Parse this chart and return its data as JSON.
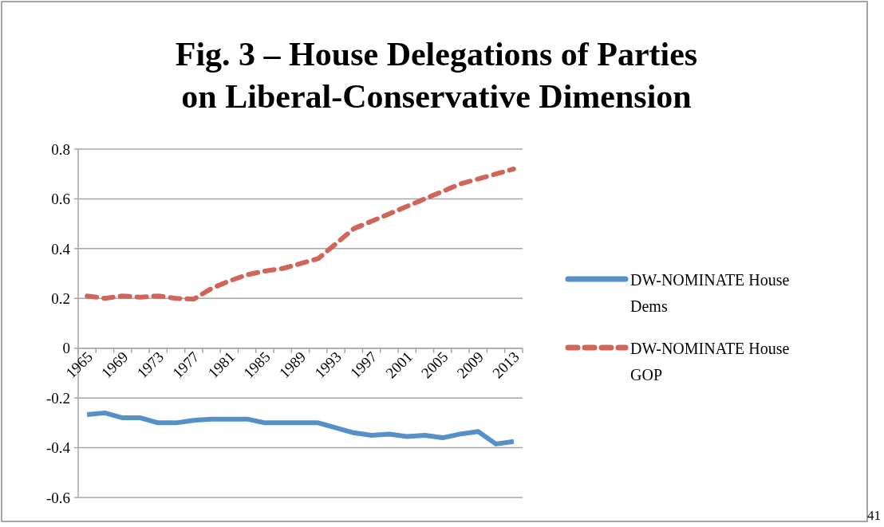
{
  "chart_data": {
    "type": "line",
    "title": "Fig. 3 – House Delegations of Parties on Liberal-Conservative Dimension",
    "categories": [
      "1965",
      null,
      "1969",
      null,
      "1973",
      null,
      "1977",
      null,
      "1981",
      null,
      "1985",
      null,
      "1989",
      null,
      "1993",
      null,
      "1997",
      null,
      "2001",
      null,
      "2005",
      null,
      "2009",
      null,
      "2013"
    ],
    "series": [
      {
        "name": "DW-NOMINATE House Dems",
        "color": "#5590c8",
        "line_style": "solid",
        "values": [
          -0.267,
          -0.26,
          -0.28,
          -0.28,
          -0.3,
          -0.3,
          -0.29,
          -0.285,
          -0.285,
          -0.285,
          -0.3,
          -0.3,
          -0.3,
          -0.3,
          -0.32,
          -0.34,
          -0.35,
          -0.345,
          -0.355,
          -0.35,
          -0.36,
          -0.345,
          -0.335,
          -0.385,
          -0.375
        ]
      },
      {
        "name": "DW-NOMINATE House GOP",
        "color": "#d0665a",
        "line_style": "dashed",
        "values": [
          0.21,
          0.2,
          0.21,
          0.205,
          0.21,
          0.2,
          0.197,
          0.24,
          0.27,
          0.295,
          0.31,
          0.32,
          0.34,
          0.36,
          0.42,
          0.48,
          0.51,
          0.54,
          0.57,
          0.6,
          0.63,
          0.66,
          0.68,
          0.7,
          0.72
        ]
      }
    ],
    "ylim": [
      -0.6,
      0.8
    ],
    "yticks": [
      -0.6,
      -0.4,
      -0.2,
      0,
      0.2,
      0.4,
      0.6,
      0.8
    ],
    "grid": "y",
    "legend": "right",
    "marker": "none",
    "annotations": [
      "41"
    ]
  }
}
